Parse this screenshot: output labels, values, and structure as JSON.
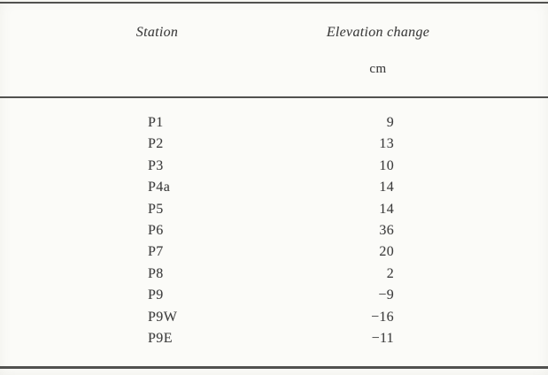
{
  "page": {
    "background_color": "#fbfbf8",
    "text_color": "#3d3d3d",
    "rule_color": "#51514f"
  },
  "table": {
    "header": {
      "station": "Station",
      "elevation": "Elevation change",
      "unit": "cm"
    },
    "rows": [
      {
        "station": "P1",
        "value": "9"
      },
      {
        "station": "P2",
        "value": "13"
      },
      {
        "station": "P3",
        "value": "10"
      },
      {
        "station": "P4a",
        "value": "14"
      },
      {
        "station": "P5",
        "value": "14"
      },
      {
        "station": "P6",
        "value": "36"
      },
      {
        "station": "P7",
        "value": "20"
      },
      {
        "station": "P8",
        "value": "2"
      },
      {
        "station": "P9",
        "value": "−9"
      },
      {
        "station": "P9W",
        "value": "−16"
      },
      {
        "station": "P9E",
        "value": "−11"
      }
    ]
  },
  "chart_data": {
    "type": "table",
    "title": "",
    "columns": [
      "Station",
      "Elevation change (cm)"
    ],
    "categories": [
      "P1",
      "P2",
      "P3",
      "P4a",
      "P5",
      "P6",
      "P7",
      "P8",
      "P9",
      "P9W",
      "P9E"
    ],
    "values": [
      9,
      13,
      10,
      14,
      14,
      36,
      20,
      2,
      -9,
      -16,
      -11
    ]
  }
}
